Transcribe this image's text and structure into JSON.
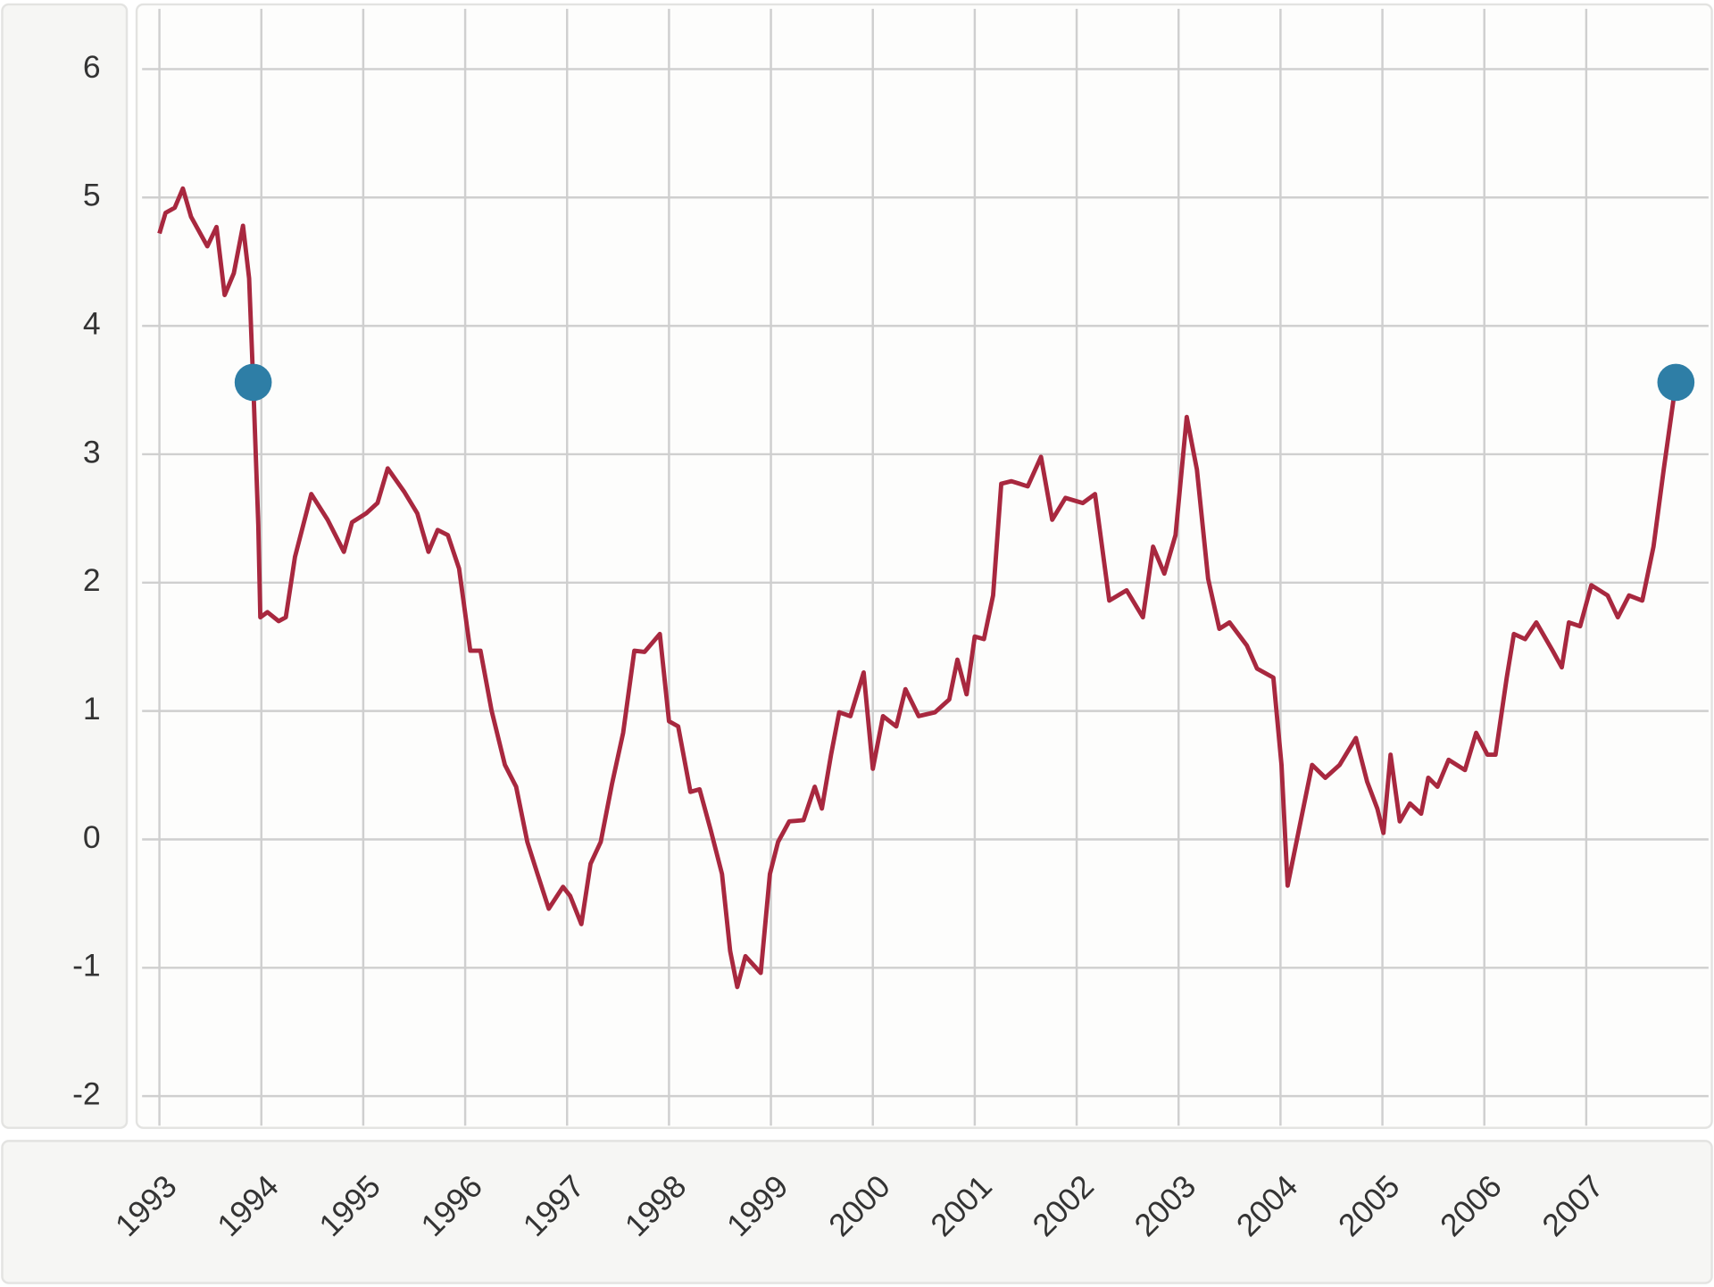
{
  "chart_data": {
    "type": "line",
    "color": "#a8283f",
    "x": [
      1993.0,
      1993.06,
      1993.15,
      1993.23,
      1993.31,
      1993.47,
      1993.56,
      1993.64,
      1993.73,
      1993.82,
      1993.88,
      1993.92,
      1993.97,
      1993.99,
      1994.06,
      1994.17,
      1994.24,
      1994.33,
      1994.49,
      1994.65,
      1994.81,
      1994.89,
      1995.03,
      1995.14,
      1995.24,
      1995.4,
      1995.53,
      1995.64,
      1995.73,
      1995.83,
      1995.94,
      1996.05,
      1996.15,
      1996.26,
      1996.39,
      1996.5,
      1996.61,
      1996.71,
      1996.82,
      1996.96,
      1997.03,
      1997.14,
      1997.23,
      1997.33,
      1997.44,
      1997.55,
      1997.66,
      1997.76,
      1997.91,
      1998.0,
      1998.09,
      1998.21,
      1998.3,
      1998.41,
      1998.52,
      1998.6,
      1998.67,
      1998.75,
      1998.9,
      1998.99,
      1999.07,
      1999.18,
      1999.32,
      1999.43,
      1999.5,
      1999.59,
      1999.67,
      1999.78,
      1999.91,
      2000.0,
      2000.1,
      2000.23,
      2000.32,
      2000.45,
      2000.61,
      2000.75,
      2000.83,
      2000.92,
      2001.0,
      2001.09,
      2001.18,
      2001.26,
      2001.36,
      2001.52,
      2001.65,
      2001.76,
      2001.89,
      2002.06,
      2002.18,
      2002.32,
      2002.49,
      2002.65,
      2002.75,
      2002.86,
      2002.97,
      2003.08,
      2003.18,
      2003.29,
      2003.4,
      2003.5,
      2003.67,
      2003.77,
      2003.93,
      2004.01,
      2004.07,
      2004.2,
      2004.31,
      2004.44,
      2004.58,
      2004.74,
      2004.85,
      2004.95,
      2005.01,
      2005.08,
      2005.17,
      2005.27,
      2005.38,
      2005.45,
      2005.54,
      2005.65,
      2005.81,
      2005.92,
      2006.03,
      2006.11,
      2006.22,
      2006.29,
      2006.4,
      2006.51,
      2006.67,
      2006.76,
      2006.83,
      2006.94,
      2007.05,
      2007.21,
      2007.31,
      2007.42,
      2007.55,
      2007.66,
      2007.76,
      2007.88
    ],
    "values": [
      4.72,
      4.88,
      4.92,
      5.07,
      4.85,
      4.62,
      4.77,
      4.24,
      4.41,
      4.78,
      4.37,
      3.56,
      2.45,
      1.73,
      1.77,
      1.7,
      1.73,
      2.2,
      2.69,
      2.49,
      2.24,
      2.47,
      2.54,
      2.62,
      2.89,
      2.71,
      2.54,
      2.24,
      2.41,
      2.37,
      2.11,
      1.47,
      1.47,
      1.0,
      0.58,
      0.41,
      -0.02,
      -0.27,
      -0.54,
      -0.37,
      -0.44,
      -0.66,
      -0.19,
      -0.02,
      0.43,
      0.83,
      1.47,
      1.46,
      1.6,
      0.92,
      0.88,
      0.37,
      0.39,
      0.07,
      -0.27,
      -0.87,
      -1.15,
      -0.91,
      -1.04,
      -0.27,
      -0.02,
      0.14,
      0.15,
      0.41,
      0.24,
      0.66,
      0.99,
      0.96,
      1.3,
      0.55,
      0.96,
      0.88,
      1.17,
      0.96,
      0.99,
      1.09,
      1.4,
      1.13,
      1.58,
      1.56,
      1.9,
      2.77,
      2.79,
      2.75,
      2.98,
      2.49,
      2.66,
      2.62,
      2.69,
      1.86,
      1.94,
      1.73,
      2.28,
      2.07,
      2.37,
      3.29,
      2.88,
      2.03,
      1.64,
      1.69,
      1.51,
      1.33,
      1.26,
      0.58,
      -0.36,
      0.15,
      0.58,
      0.48,
      0.58,
      0.79,
      0.45,
      0.24,
      0.05,
      0.66,
      0.14,
      0.28,
      0.2,
      0.48,
      0.41,
      0.62,
      0.54,
      0.83,
      0.66,
      0.66,
      1.26,
      1.6,
      1.56,
      1.69,
      1.47,
      1.34,
      1.69,
      1.66,
      1.98,
      1.9,
      1.73,
      1.9,
      1.86,
      2.28,
      2.88,
      3.56
    ],
    "markers": {
      "x": [
        1993.92,
        2007.88
      ],
      "values": [
        3.56,
        3.56
      ],
      "color": "#2e7ea6"
    },
    "xlim": [
      1992.83,
      2008.2
    ],
    "xticks": [
      1993,
      1994,
      1995,
      1996,
      1997,
      1998,
      1999,
      2000,
      2001,
      2002,
      2003,
      2004,
      2005,
      2006,
      2007
    ],
    "ylim": [
      -2.23,
      6.47
    ],
    "yticks": [
      -2,
      -1,
      0,
      1,
      2,
      3,
      4,
      5,
      6
    ],
    "grid": true
  }
}
